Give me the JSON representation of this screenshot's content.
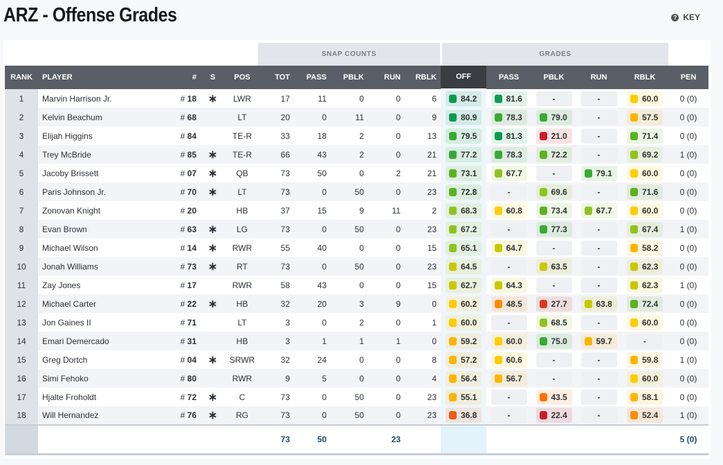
{
  "title": "ARZ - Offense Grades",
  "key_label": "KEY",
  "groups": {
    "snap": "SNAP COUNTS",
    "grades": "GRADES"
  },
  "headers": [
    "RANK",
    "PLAYER",
    "#",
    "S",
    "POS",
    "TOT",
    "PASS",
    "PBLK",
    "RUN",
    "RBLK",
    "OFF",
    "PASS",
    "PBLK",
    "RUN",
    "RBLK",
    "PEN"
  ],
  "starter_symbol": "∗",
  "rows": [
    {
      "rank": "1",
      "player": "Marvin Harrison Jr.",
      "num": "18",
      "starter": true,
      "pos": "LWR",
      "snaps": [
        "17",
        "11",
        "0",
        "0",
        "6"
      ],
      "grades": [
        "84.2",
        "81.6",
        "-",
        "-",
        "60.0"
      ],
      "pen": "0 (0)"
    },
    {
      "rank": "2",
      "player": "Kelvin Beachum",
      "num": "68",
      "starter": false,
      "pos": "LT",
      "snaps": [
        "20",
        "0",
        "11",
        "0",
        "9"
      ],
      "grades": [
        "80.9",
        "78.3",
        "79.0",
        "-",
        "57.5"
      ],
      "pen": "0 (0)"
    },
    {
      "rank": "3",
      "player": "Elijah Higgins",
      "num": "84",
      "starter": false,
      "pos": "TE-R",
      "snaps": [
        "33",
        "18",
        "2",
        "0",
        "13"
      ],
      "grades": [
        "79.5",
        "81.3",
        "21.0",
        "-",
        "71.4"
      ],
      "pen": "0 (0)"
    },
    {
      "rank": "4",
      "player": "Trey McBride",
      "num": "85",
      "starter": true,
      "pos": "TE-R",
      "snaps": [
        "66",
        "43",
        "2",
        "0",
        "21"
      ],
      "grades": [
        "77.2",
        "78.3",
        "72.2",
        "-",
        "69.2"
      ],
      "pen": "1 (0)"
    },
    {
      "rank": "5",
      "player": "Jacoby Brissett",
      "num": "07",
      "starter": true,
      "pos": "QB",
      "snaps": [
        "73",
        "50",
        "0",
        "2",
        "21"
      ],
      "grades": [
        "73.1",
        "67.7",
        "-",
        "79.1",
        "60.0"
      ],
      "pen": "0 (0)"
    },
    {
      "rank": "6",
      "player": "Paris Johnson Jr.",
      "num": "70",
      "starter": true,
      "pos": "LT",
      "snaps": [
        "73",
        "0",
        "50",
        "0",
        "23"
      ],
      "grades": [
        "72.8",
        "-",
        "69.6",
        "-",
        "71.6"
      ],
      "pen": "0 (0)"
    },
    {
      "rank": "7",
      "player": "Zonovan Knight",
      "num": "20",
      "starter": false,
      "pos": "HB",
      "snaps": [
        "37",
        "15",
        "9",
        "11",
        "2"
      ],
      "grades": [
        "68.3",
        "60.8",
        "73.4",
        "67.7",
        "60.0"
      ],
      "pen": "0 (0)"
    },
    {
      "rank": "8",
      "player": "Evan Brown",
      "num": "63",
      "starter": true,
      "pos": "LG",
      "snaps": [
        "73",
        "0",
        "50",
        "0",
        "23"
      ],
      "grades": [
        "67.2",
        "-",
        "77.3",
        "-",
        "67.4"
      ],
      "pen": "1 (0)"
    },
    {
      "rank": "9",
      "player": "Michael Wilson",
      "num": "14",
      "starter": true,
      "pos": "RWR",
      "snaps": [
        "55",
        "40",
        "0",
        "0",
        "15"
      ],
      "grades": [
        "65.1",
        "64.7",
        "-",
        "-",
        "58.2"
      ],
      "pen": "0 (0)"
    },
    {
      "rank": "10",
      "player": "Jonah Williams",
      "num": "73",
      "starter": true,
      "pos": "RT",
      "snaps": [
        "73",
        "0",
        "50",
        "0",
        "23"
      ],
      "grades": [
        "64.5",
        "-",
        "63.5",
        "-",
        "62.3"
      ],
      "pen": "0 (0)"
    },
    {
      "rank": "11",
      "player": "Zay Jones",
      "num": "17",
      "starter": false,
      "pos": "RWR",
      "snaps": [
        "58",
        "43",
        "0",
        "0",
        "15"
      ],
      "grades": [
        "62.7",
        "64.3",
        "-",
        "-",
        "62.3"
      ],
      "pen": "1 (0)"
    },
    {
      "rank": "12",
      "player": "Michael Carter",
      "num": "22",
      "starter": true,
      "pos": "HB",
      "snaps": [
        "32",
        "20",
        "3",
        "9",
        "0"
      ],
      "grades": [
        "60.2",
        "48.5",
        "27.7",
        "63.8",
        "72.4"
      ],
      "pen": "0 (0)"
    },
    {
      "rank": "13",
      "player": "Jon Gaines II",
      "num": "71",
      "starter": false,
      "pos": "LT",
      "snaps": [
        "3",
        "0",
        "2",
        "0",
        "1"
      ],
      "grades": [
        "60.0",
        "-",
        "68.5",
        "-",
        "60.0"
      ],
      "pen": "0 (0)"
    },
    {
      "rank": "14",
      "player": "Emari Demercado",
      "num": "31",
      "starter": false,
      "pos": "HB",
      "snaps": [
        "3",
        "1",
        "1",
        "1",
        "0"
      ],
      "grades": [
        "59.2",
        "60.0",
        "75.0",
        "59.7",
        "-"
      ],
      "pen": "0 (0)"
    },
    {
      "rank": "15",
      "player": "Greg Dortch",
      "num": "04",
      "starter": true,
      "pos": "SRWR",
      "snaps": [
        "32",
        "24",
        "0",
        "0",
        "8"
      ],
      "grades": [
        "57.2",
        "60.6",
        "-",
        "-",
        "59.8"
      ],
      "pen": "1 (0)"
    },
    {
      "rank": "16",
      "player": "Simi Fehoko",
      "num": "80",
      "starter": false,
      "pos": "RWR",
      "snaps": [
        "9",
        "5",
        "0",
        "0",
        "4"
      ],
      "grades": [
        "56.4",
        "56.7",
        "-",
        "-",
        "60.0"
      ],
      "pen": "0 (0)"
    },
    {
      "rank": "17",
      "player": "Hjalte Froholdt",
      "num": "72",
      "starter": true,
      "pos": "C",
      "snaps": [
        "73",
        "0",
        "50",
        "0",
        "23"
      ],
      "grades": [
        "55.1",
        "-",
        "43.5",
        "-",
        "58.1"
      ],
      "pen": "0 (0)"
    },
    {
      "rank": "18",
      "player": "Will Hernandez",
      "num": "76",
      "starter": true,
      "pos": "RG",
      "snaps": [
        "73",
        "0",
        "50",
        "0",
        "23"
      ],
      "grades": [
        "36.8",
        "-",
        "22.4",
        "-",
        "52.4"
      ],
      "pen": "1 (0)"
    }
  ],
  "totals": {
    "tot": "73",
    "pass": "50",
    "run": "23",
    "pen": "5 (0)"
  }
}
